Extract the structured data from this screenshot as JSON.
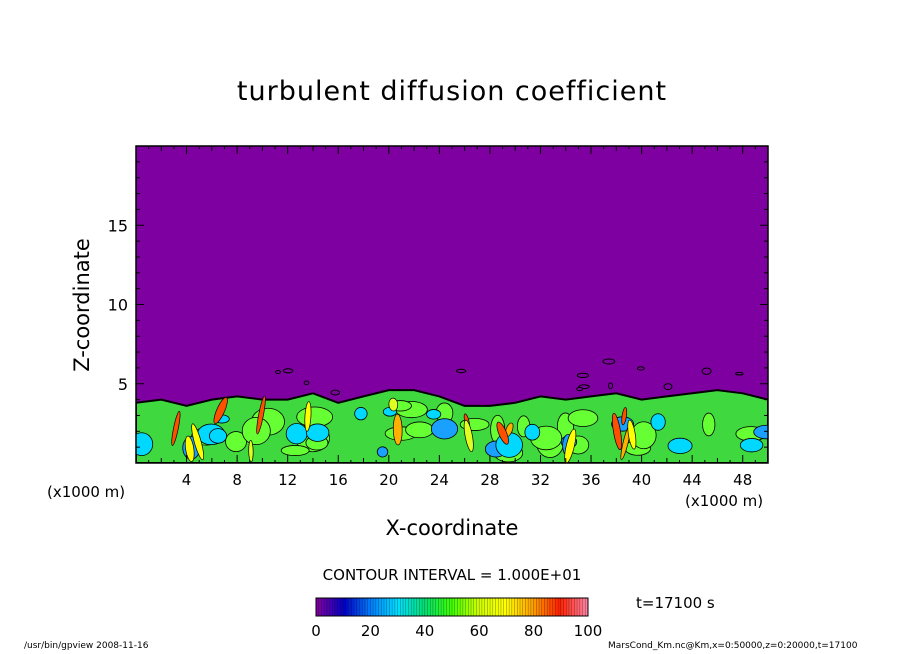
{
  "chart_data": {
    "type": "heatmap",
    "title": "turbulent diffusion coefficient",
    "xlabel": "X-coordinate",
    "ylabel": "Z-coordinate",
    "x_unit": "(x1000 m)",
    "x_range": [
      0,
      50
    ],
    "y_range": [
      0,
      20
    ],
    "x_ticks": [
      4,
      8,
      12,
      16,
      20,
      24,
      28,
      32,
      36,
      40,
      44,
      48
    ],
    "y_ticks": [
      5,
      10,
      15
    ],
    "contour_interval": "CONTOUR INTERVAL = 1.000E+01",
    "time_label": "t=17100 s",
    "colorbar": {
      "ticks": [
        0,
        20,
        40,
        60,
        80,
        100
      ],
      "range": [
        0,
        100
      ],
      "colors": [
        "#7f00a0",
        "#0000c8",
        "#0080ff",
        "#00e0ff",
        "#00e070",
        "#40ff00",
        "#d0ff00",
        "#ffff00",
        "#ffa000",
        "#ff2000",
        "#ff80a0"
      ]
    },
    "boundary_layer_top_approx": [
      [
        0,
        3.8
      ],
      [
        2,
        4.0
      ],
      [
        4,
        3.6
      ],
      [
        6,
        4.0
      ],
      [
        8,
        4.2
      ],
      [
        10,
        4.0
      ],
      [
        12,
        4.0
      ],
      [
        14,
        4.4
      ],
      [
        16,
        3.8
      ],
      [
        18,
        4.2
      ],
      [
        20,
        4.6
      ],
      [
        22,
        4.6
      ],
      [
        24,
        4.2
      ],
      [
        26,
        3.6
      ],
      [
        28,
        3.6
      ],
      [
        30,
        3.8
      ],
      [
        32,
        4.2
      ],
      [
        34,
        4.0
      ],
      [
        36,
        4.2
      ],
      [
        38,
        4.4
      ],
      [
        40,
        4.0
      ],
      [
        42,
        4.2
      ],
      [
        44,
        4.4
      ],
      [
        46,
        4.6
      ],
      [
        48,
        4.4
      ],
      [
        50,
        4.0
      ]
    ],
    "background_color": "#7f00a0"
  },
  "footer": {
    "left": "/usr/bin/gpview  2008-11-16",
    "right": "MarsCond_Km.nc@Km,x=0:50000,z=0:20000,t=17100"
  }
}
